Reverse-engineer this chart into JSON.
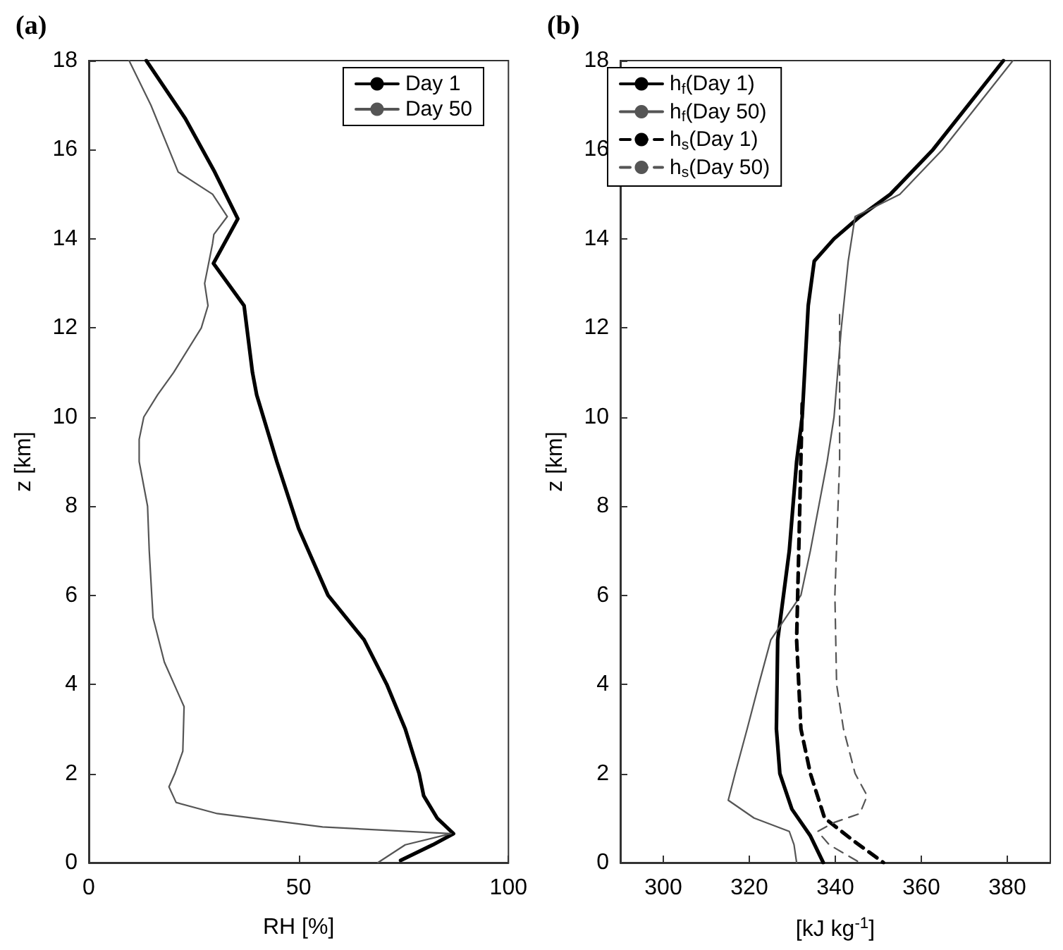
{
  "chart_data": [
    {
      "type": "line",
      "title": "(a)",
      "xlabel": "RH [%]",
      "ylabel": "z [km]",
      "xlim": [
        0,
        100
      ],
      "xticks": [
        0,
        50,
        100
      ],
      "ylim": [
        0,
        18
      ],
      "yticks": [
        0,
        2,
        4,
        6,
        8,
        10,
        12,
        14,
        16,
        18
      ],
      "grid": false,
      "legend": "top right",
      "marker": "none",
      "series": [
        {
          "name": "Day 1",
          "color": "#000000",
          "line_style": "solid",
          "x": [
            13.7,
            23,
            30,
            35.5,
            29.7,
            37,
            39,
            40,
            44.8,
            50,
            57,
            65.6,
            71,
            75.4,
            78.7,
            79.8,
            83,
            86.9,
            82,
            74.3
          ],
          "values": [
            18,
            16.7,
            15.5,
            14.45,
            13.45,
            12.5,
            11,
            10.5,
            9,
            7.5,
            6,
            5,
            4,
            3,
            2,
            1.5,
            1,
            0.65,
            0.4,
            0.05
          ]
        },
        {
          "name": "Day 50",
          "color": "#555555",
          "line_style": "solid",
          "x": [
            9.6,
            14.8,
            21.3,
            29.5,
            33,
            29.8,
            29.5,
            27.6,
            28.4,
            26.8,
            20.2,
            16.4,
            13.1,
            12,
            12,
            14,
            14.4,
            15.3,
            18,
            22.7,
            22.4,
            20.5,
            19.1,
            20.8,
            30.6,
            55.7,
            86.3,
            75.4,
            68.9
          ],
          "values": [
            18,
            17,
            15.5,
            15,
            14.5,
            14.1,
            13.9,
            13,
            12.5,
            12,
            11,
            10.5,
            10,
            9.5,
            9,
            8,
            7,
            5.5,
            4.5,
            3.5,
            2.5,
            2,
            1.7,
            1.35,
            1.1,
            0.8,
            0.65,
            0.4,
            0
          ]
        }
      ]
    },
    {
      "type": "line",
      "title": "(b)",
      "xlabel": "[kJ kg$^{-1}$]",
      "ylabel": "z [km]",
      "xlim": [
        290,
        390
      ],
      "xticks": [
        300,
        320,
        340,
        360,
        380
      ],
      "ylim": [
        0,
        18
      ],
      "yticks": [
        0,
        2,
        4,
        6,
        8,
        10,
        12,
        14,
        16,
        18
      ],
      "grid": false,
      "legend": "top left",
      "marker": "none",
      "series": [
        {
          "name": "h$_{f}$(Day 1)",
          "color": "#000000",
          "line_style": "solid",
          "x": [
            379.1,
            362.7,
            352.8,
            345.7,
            339.7,
            335.1,
            333.7,
            332.3,
            331,
            329.3,
            326.6,
            326.3,
            327.1,
            329.9,
            334.2,
            337.2
          ],
          "values": [
            18,
            16,
            15,
            14.5,
            14,
            13.5,
            12.5,
            10,
            9,
            7,
            5,
            3,
            2,
            1.2,
            0.6,
            0
          ]
        },
        {
          "name": "h$_{f}$(Day 50)",
          "color": "#555555",
          "line_style": "solid",
          "x": [
            381.3,
            364.9,
            355,
            344.6,
            343,
            341.4,
            339.7,
            338.1,
            334.2,
            332,
            325,
            322.2,
            319.5,
            316.7,
            315.1,
            321.1,
            329.3,
            330.4,
            331
          ],
          "values": [
            18,
            16,
            15,
            14.5,
            13.5,
            12,
            10,
            9,
            7,
            6,
            5,
            4,
            3,
            2,
            1.4,
            1,
            0.7,
            0.4,
            0
          ]
        },
        {
          "name": "h$_{s}$(Day 1)",
          "color": "#000000",
          "line_style": "dashed",
          "x": [
            332.3,
            331.5,
            331,
            332,
            334.2,
            337.5,
            344.1,
            351.2
          ],
          "values": [
            10.3,
            7,
            5,
            3,
            2,
            1,
            0.5,
            0
          ]
        },
        {
          "name": "h$_{s}$(Day 50)",
          "color": "#555555",
          "line_style": "dashed",
          "x": [
            341,
            341,
            339.9,
            340.3,
            341.9,
            344.6,
            347.4,
            345.7,
            339.7,
            335.9,
            338.6,
            345.7
          ],
          "values": [
            12.3,
            9,
            6,
            4,
            3,
            2,
            1.5,
            1.1,
            0.9,
            0.7,
            0.4,
            0
          ]
        }
      ]
    }
  ]
}
